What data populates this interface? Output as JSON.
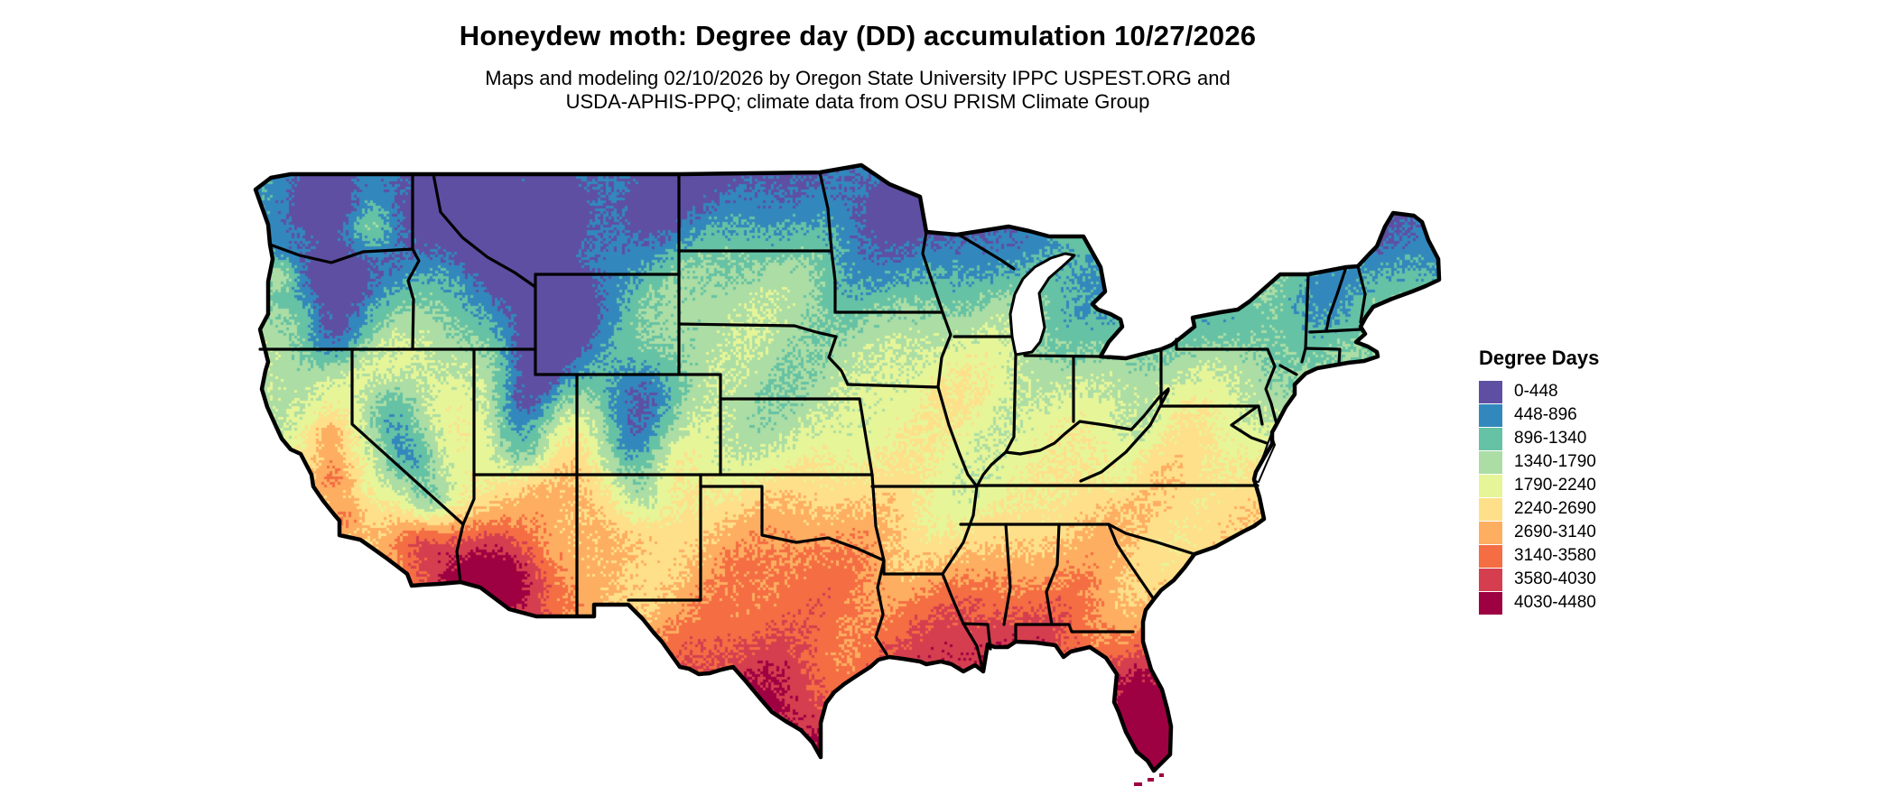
{
  "title": "Honeydew moth: Degree day (DD) accumulation 10/27/2026",
  "subtitle": {
    "line1": "Maps and modeling 02/10/2026 by Oregon State University IPPC USPEST.ORG and",
    "line2": "USDA-APHIS-PPQ; climate data from OSU PRISM Climate Group"
  },
  "map": {
    "region": "Contiguous United States",
    "type": "degree-day choropleth raster",
    "border_color": "#000000",
    "water_color": "#ffffff"
  },
  "legend": {
    "title": "Degree Days",
    "items": [
      {
        "label": "0-448",
        "color": "#5e4fa2"
      },
      {
        "label": "448-896",
        "color": "#3288bd"
      },
      {
        "label": "896-1340",
        "color": "#66c2a5"
      },
      {
        "label": "1340-1790",
        "color": "#abdda4"
      },
      {
        "label": "1790-2240",
        "color": "#e6f598"
      },
      {
        "label": "2240-2690",
        "color": "#fee08b"
      },
      {
        "label": "2690-3140",
        "color": "#fdae61"
      },
      {
        "label": "3140-3580",
        "color": "#f46d43"
      },
      {
        "label": "3580-4030",
        "color": "#d53e4f"
      },
      {
        "label": "4030-4480",
        "color": "#9e0142"
      }
    ]
  }
}
